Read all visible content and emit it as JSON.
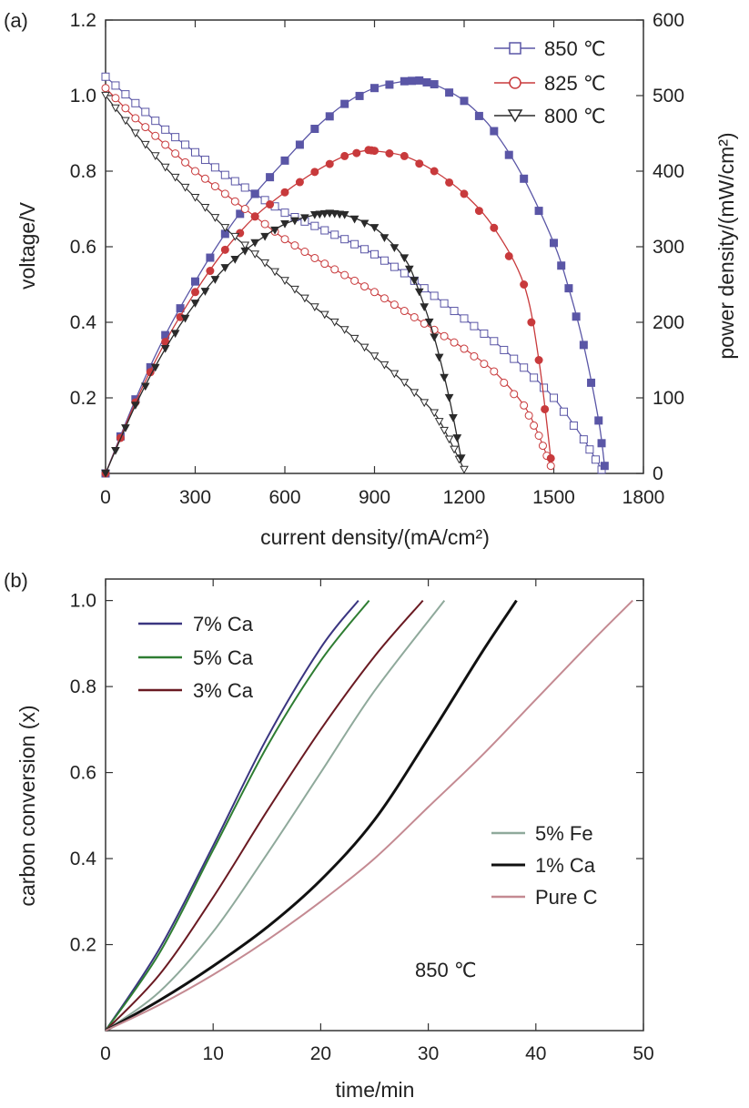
{
  "chart_data": [
    {
      "panel_label": "(a)",
      "type": "line",
      "title": "",
      "xlabel": "current density/(mA/cm²)",
      "ylabel": "voltage/V",
      "y2label": "power density/(mW/cm²)",
      "xlim": [
        0,
        1800
      ],
      "ylim": [
        0,
        1.2
      ],
      "y2lim": [
        0,
        600
      ],
      "x_ticks": [
        "0",
        "300",
        "600",
        "900",
        "1200",
        "1500",
        "1800"
      ],
      "y_ticks": [
        "0.2",
        "0.4",
        "0.6",
        "0.8",
        "1.0",
        "1.2"
      ],
      "y2_ticks": [
        "0",
        "100",
        "200",
        "300",
        "400",
        "500",
        "600"
      ],
      "legend_position": "top-right",
      "legend": [
        "850 ℃",
        "825 ℃",
        "800 ℃"
      ],
      "series": [
        {
          "name": "850 ℃",
          "color": "#5a56a6",
          "marker": "square",
          "voltage": {
            "x": [
              0,
              100,
              200,
              300,
              400,
              500,
              600,
              700,
              800,
              900,
              1000,
              1100,
              1200,
              1300,
              1400,
              1500,
              1600,
              1660
            ],
            "y": [
              1.05,
              0.98,
              0.91,
              0.85,
              0.79,
              0.74,
              0.69,
              0.655,
              0.62,
              0.58,
              0.53,
              0.47,
              0.41,
              0.35,
              0.28,
              0.2,
              0.09,
              0.01
            ]
          },
          "power": {
            "x": [
              0,
              100,
              200,
              300,
              400,
              500,
              600,
              700,
              800,
              900,
              1000,
              1050,
              1100,
              1200,
              1300,
              1400,
              1500,
              1550,
              1600,
              1650,
              1670
            ],
            "y": [
              0,
              98,
              183,
              254,
              317,
              370,
              414,
              456,
              489,
              510,
              519,
              520,
              515,
              493,
              453,
              390,
              305,
              245,
              170,
              70,
              10
            ]
          }
        },
        {
          "name": "825 ℃",
          "color": "#c83a3c",
          "marker": "circle",
          "voltage": {
            "x": [
              0,
              100,
              200,
              300,
              400,
              500,
              600,
              700,
              800,
              900,
              1000,
              1100,
              1200,
              1300,
              1400,
              1450,
              1490
            ],
            "y": [
              1.02,
              0.94,
              0.87,
              0.8,
              0.74,
              0.68,
              0.62,
              0.57,
              0.525,
              0.48,
              0.43,
              0.38,
              0.33,
              0.27,
              0.18,
              0.1,
              0.02
            ]
          },
          "power": {
            "x": [
              0,
              100,
              200,
              300,
              400,
              500,
              600,
              700,
              800,
              880,
              900,
              1000,
              1100,
              1200,
              1300,
              1400,
              1450,
              1490
            ],
            "y": [
              0,
              94,
              174,
              240,
              296,
              340,
              372,
              399,
              420,
              428,
              427,
              420,
              400,
              370,
              325,
              250,
              150,
              20
            ]
          }
        },
        {
          "name": "800 ℃",
          "color": "#2a2a2a",
          "marker": "triangle-down",
          "voltage": {
            "x": [
              0,
              100,
              200,
              300,
              400,
              500,
              600,
              700,
              800,
              900,
              1000,
              1100,
              1150,
              1200
            ],
            "y": [
              1.0,
              0.9,
              0.81,
              0.73,
              0.65,
              0.58,
              0.51,
              0.44,
              0.38,
              0.31,
              0.24,
              0.16,
              0.09,
              0.01
            ]
          },
          "power": {
            "x": [
              0,
              100,
              200,
              300,
              400,
              500,
              600,
              700,
              750,
              800,
              900,
              1000,
              1050,
              1100,
              1150,
              1190
            ],
            "y": [
              0,
              90,
              165,
              225,
              272,
              305,
              330,
              342,
              344,
              342,
              325,
              285,
              240,
              180,
              100,
              20
            ]
          }
        }
      ]
    },
    {
      "panel_label": "(b)",
      "type": "line",
      "title": "",
      "xlabel": "time/min",
      "ylabel": "carbon conversion (x)",
      "xlim": [
        0,
        50
      ],
      "ylim": [
        0,
        1.05
      ],
      "x_ticks": [
        "0",
        "10",
        "20",
        "30",
        "40",
        "50"
      ],
      "y_ticks": [
        "0.2",
        "0.4",
        "0.6",
        "0.8",
        "1.0"
      ],
      "annotation": "850 ℃",
      "legend_position": "top-left and middle-right",
      "legend": [
        "7% Ca",
        "5% Ca",
        "3% Ca",
        "5% Fe",
        "1% Ca",
        "Pure C"
      ],
      "series": [
        {
          "name": "7% Ca",
          "color": "#3a3580",
          "x": [
            0,
            5,
            10,
            15,
            20,
            23.5
          ],
          "y": [
            0,
            0.19,
            0.43,
            0.68,
            0.89,
            1.0
          ]
        },
        {
          "name": "5% Ca",
          "color": "#2e7d32",
          "x": [
            0,
            5,
            10,
            15,
            20,
            24.5
          ],
          "y": [
            0,
            0.18,
            0.42,
            0.66,
            0.86,
            1.0
          ]
        },
        {
          "name": "3% Ca",
          "color": "#6a1a22",
          "x": [
            0,
            5,
            10,
            15,
            20,
            25,
            29.5
          ],
          "y": [
            0,
            0.13,
            0.31,
            0.51,
            0.7,
            0.87,
            1.0
          ]
        },
        {
          "name": "5% Fe",
          "color": "#8fa99b",
          "x": [
            0,
            5,
            10,
            15,
            20,
            25,
            31.5
          ],
          "y": [
            0,
            0.09,
            0.23,
            0.41,
            0.6,
            0.79,
            1.0
          ]
        },
        {
          "name": "1% Ca",
          "color": "#111111",
          "x": [
            0,
            5,
            10,
            15,
            20,
            25,
            30,
            35,
            38.2
          ],
          "y": [
            0,
            0.07,
            0.15,
            0.24,
            0.35,
            0.49,
            0.68,
            0.88,
            1.0
          ]
        },
        {
          "name": "Pure C",
          "color": "#c48a92",
          "x": [
            0,
            5,
            10,
            15,
            20,
            25,
            30,
            35,
            40,
            45,
            49
          ],
          "y": [
            0,
            0.06,
            0.13,
            0.21,
            0.3,
            0.4,
            0.52,
            0.64,
            0.77,
            0.9,
            1.0
          ]
        }
      ]
    }
  ]
}
